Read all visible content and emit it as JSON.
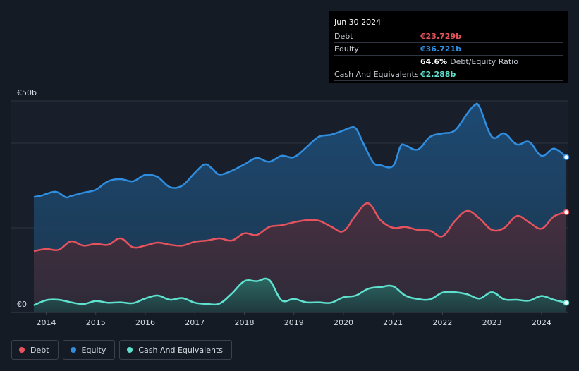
{
  "tooltip": {
    "date": "Jun 30 2024",
    "rows": [
      {
        "label": "Debt",
        "value": "€23.729b",
        "color": "#e5535e"
      },
      {
        "label": "Equity",
        "value": "€36.721b",
        "color": "#2f8ee0"
      },
      {
        "label": "",
        "value": "64.6%",
        "suffix": "Debt/Equity Ratio",
        "color": "#ffffff"
      },
      {
        "label": "Cash And Equivalents",
        "value": "€2.288b",
        "color": "#5fe1cf"
      }
    ]
  },
  "legend": [
    {
      "label": "Debt",
      "color": "#e5535e"
    },
    {
      "label": "Equity",
      "color": "#2f8ee0"
    },
    {
      "label": "Cash And Equivalents",
      "color": "#5fe1cf"
    }
  ],
  "chart_data": {
    "type": "area",
    "y_top_label": "€50b",
    "y_zero_label": "€0",
    "ylim": [
      0,
      50
    ],
    "xlim": [
      2013.75,
      2024.5
    ],
    "x_ticks": [
      "2014",
      "2015",
      "2016",
      "2017",
      "2018",
      "2019",
      "2020",
      "2021",
      "2022",
      "2023",
      "2024"
    ],
    "series": [
      {
        "name": "Equity",
        "color": "#2f8ee0",
        "x": [
          2013.75,
          2013.9,
          2014.0,
          2014.15,
          2014.25,
          2014.4,
          2014.5,
          2014.75,
          2015.0,
          2015.25,
          2015.5,
          2015.75,
          2016.0,
          2016.25,
          2016.5,
          2016.75,
          2017.0,
          2017.2,
          2017.35,
          2017.5,
          2017.75,
          2018.0,
          2018.25,
          2018.5,
          2018.75,
          2019.0,
          2019.25,
          2019.5,
          2019.75,
          2020.0,
          2020.1,
          2020.25,
          2020.4,
          2020.6,
          2020.75,
          2021.0,
          2021.15,
          2021.25,
          2021.5,
          2021.75,
          2022.0,
          2022.25,
          2022.5,
          2022.65,
          2022.75,
          2023.0,
          2023.25,
          2023.5,
          2023.75,
          2024.0,
          2024.25,
          2024.5
        ],
        "values": [
          27.3,
          27.6,
          28.0,
          28.5,
          28.3,
          27.2,
          27.5,
          28.3,
          29.0,
          31.0,
          31.5,
          31.0,
          32.5,
          32.0,
          29.6,
          30.0,
          33.0,
          35.0,
          34.0,
          32.6,
          33.5,
          35.0,
          36.5,
          35.6,
          37.0,
          36.7,
          39.0,
          41.5,
          42.0,
          43.0,
          43.5,
          43.5,
          40.0,
          35.5,
          34.8,
          34.6,
          39.2,
          39.5,
          38.5,
          41.5,
          42.3,
          43.0,
          47.0,
          49.0,
          48.5,
          41.5,
          42.3,
          39.7,
          40.3,
          37.0,
          38.7,
          36.7
        ]
      },
      {
        "name": "Debt",
        "color": "#e5535e",
        "x": [
          2013.75,
          2014.0,
          2014.25,
          2014.5,
          2014.75,
          2015.0,
          2015.25,
          2015.5,
          2015.75,
          2016.0,
          2016.25,
          2016.5,
          2016.75,
          2017.0,
          2017.25,
          2017.5,
          2017.75,
          2018.0,
          2018.25,
          2018.5,
          2018.75,
          2019.0,
          2019.25,
          2019.5,
          2019.75,
          2020.0,
          2020.25,
          2020.5,
          2020.75,
          2021.0,
          2021.25,
          2021.5,
          2021.75,
          2022.0,
          2022.25,
          2022.5,
          2022.75,
          2023.0,
          2023.25,
          2023.5,
          2023.75,
          2024.0,
          2024.25,
          2024.5
        ],
        "values": [
          14.5,
          15.0,
          14.8,
          16.8,
          15.8,
          16.2,
          16.0,
          17.5,
          15.4,
          15.8,
          16.5,
          16.0,
          15.8,
          16.7,
          17.0,
          17.5,
          17.0,
          18.7,
          18.3,
          20.2,
          20.6,
          21.3,
          21.8,
          21.7,
          20.3,
          19.2,
          23.0,
          25.8,
          21.8,
          20.0,
          20.2,
          19.5,
          19.3,
          18.0,
          21.6,
          24.0,
          22.2,
          19.5,
          20.0,
          22.8,
          21.3,
          19.8,
          22.7,
          23.7
        ]
      },
      {
        "name": "Cash And Equivalents",
        "color": "#5fe1cf",
        "x": [
          2013.75,
          2014.0,
          2014.25,
          2014.5,
          2014.75,
          2015.0,
          2015.25,
          2015.5,
          2015.75,
          2016.0,
          2016.25,
          2016.5,
          2016.75,
          2017.0,
          2017.25,
          2017.5,
          2017.75,
          2018.0,
          2018.25,
          2018.5,
          2018.75,
          2019.0,
          2019.25,
          2019.5,
          2019.75,
          2020.0,
          2020.25,
          2020.5,
          2020.75,
          2021.0,
          2021.25,
          2021.5,
          2021.75,
          2022.0,
          2022.25,
          2022.5,
          2022.75,
          2023.0,
          2023.25,
          2023.5,
          2023.75,
          2024.0,
          2024.25,
          2024.5
        ],
        "values": [
          1.7,
          2.9,
          3.0,
          2.4,
          2.0,
          2.7,
          2.3,
          2.4,
          2.2,
          3.3,
          4.0,
          3.0,
          3.4,
          2.3,
          2.0,
          2.1,
          4.5,
          7.4,
          7.4,
          7.7,
          2.9,
          3.2,
          2.4,
          2.4,
          2.3,
          3.6,
          4.0,
          5.6,
          6.0,
          6.2,
          4.0,
          3.2,
          3.1,
          4.7,
          4.8,
          4.3,
          3.3,
          4.8,
          3.1,
          3.0,
          2.8,
          3.9,
          3.0,
          2.3
        ]
      }
    ]
  }
}
